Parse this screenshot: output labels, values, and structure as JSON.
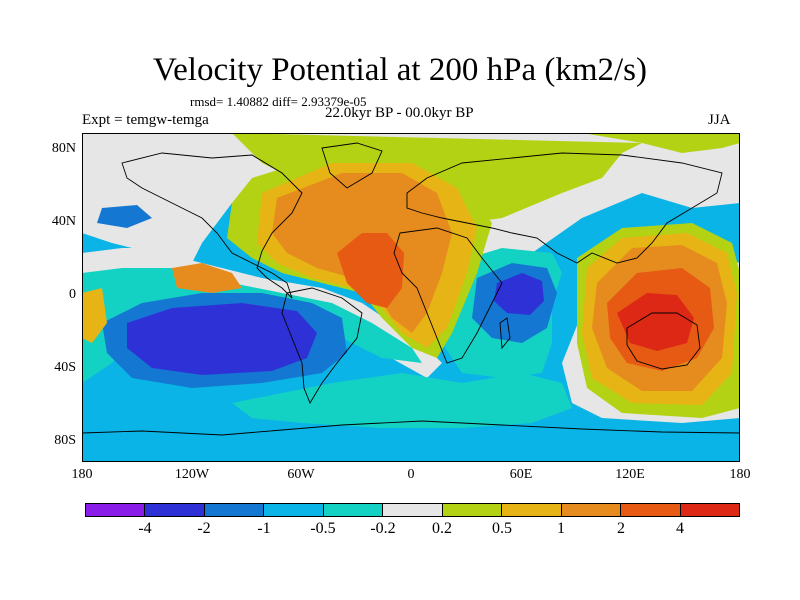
{
  "title": "Velocity Potential at 200 hPa (km2/s)",
  "stats": "rmsd= 1.40882 diff= 2.93379e-05",
  "experiment": "Expt = temgw-temga",
  "period": "22.0kyr BP - 00.0kyr BP",
  "season": "JJA",
  "lat_labels": [
    "80N",
    "40N",
    "0",
    "40S",
    "80S"
  ],
  "lon_labels": [
    "180",
    "120W",
    "60W",
    "0",
    "60E",
    "120E",
    "180"
  ],
  "colorbar": {
    "colors": [
      "#8a1ee8",
      "#2e32d6",
      "#1478d2",
      "#0ab4e6",
      "#14d2c3",
      "#e6e6e6",
      "#b4d214",
      "#e6b414",
      "#e68c1e",
      "#e65a14",
      "#dc2814"
    ],
    "labels": [
      "-4",
      "-2",
      "-1",
      "-0.5",
      "-0.2",
      "0.2",
      "0.5",
      "1",
      "2",
      "4"
    ]
  },
  "colors": {
    "ocean_background": "#0ab4e6",
    "land_outline": "#000000"
  }
}
